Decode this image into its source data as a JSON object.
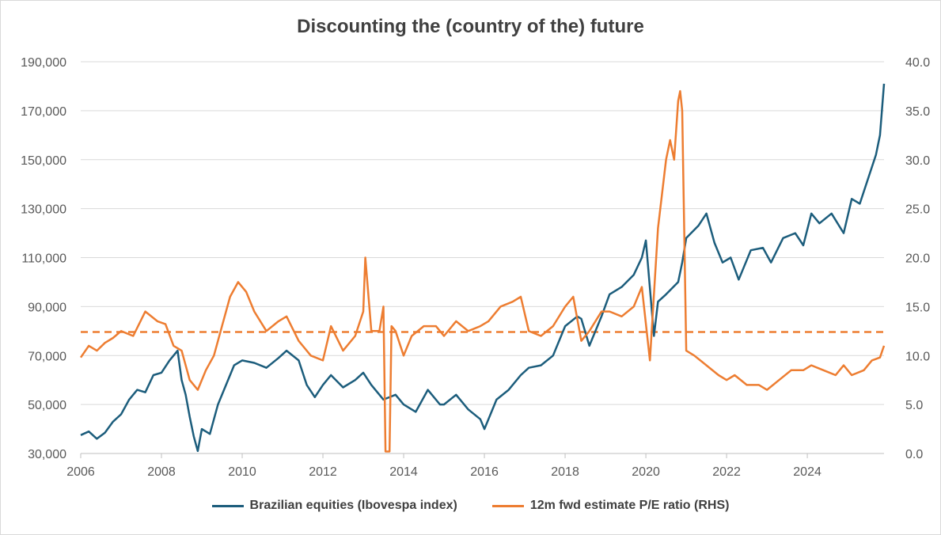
{
  "chart_data": {
    "type": "line",
    "title": "Discounting the (country of the) future",
    "x_ticks": [
      "2006",
      "2008",
      "2010",
      "2012",
      "2014",
      "2016",
      "2018",
      "2020",
      "2022",
      "2024"
    ],
    "xlim": [
      2006,
      2025.9
    ],
    "y_left": {
      "ticks": [
        "30,000",
        "50,000",
        "70,000",
        "90,000",
        "110,000",
        "130,000",
        "150,000",
        "170,000",
        "190,000"
      ],
      "ylim": [
        30000,
        190000
      ]
    },
    "y_right": {
      "ticks": [
        "0.0",
        "5.0",
        "10.0",
        "15.0",
        "20.0",
        "25.0",
        "30.0",
        "35.0",
        "40.0"
      ],
      "ylim": [
        0,
        40
      ]
    },
    "reference_line": {
      "axis": "right",
      "value": 12.4,
      "style": "dashed"
    },
    "series": [
      {
        "name": "Brazilian equities (Ibovespa index)",
        "axis": "left",
        "color": "#1c5d7c",
        "x": [
          2006,
          2006.2,
          2006.4,
          2006.6,
          2006.8,
          2007,
          2007.2,
          2007.4,
          2007.6,
          2007.8,
          2008,
          2008.2,
          2008.4,
          2008.5,
          2008.6,
          2008.7,
          2008.8,
          2008.9,
          2009,
          2009.2,
          2009.4,
          2009.6,
          2009.8,
          2010,
          2010.3,
          2010.6,
          2010.9,
          2011.1,
          2011.4,
          2011.6,
          2011.8,
          2012,
          2012.2,
          2012.5,
          2012.8,
          2013,
          2013.2,
          2013.5,
          2013.8,
          2014,
          2014.3,
          2014.6,
          2014.9,
          2015,
          2015.3,
          2015.6,
          2015.9,
          2016,
          2016.3,
          2016.6,
          2016.9,
          2017.1,
          2017.4,
          2017.7,
          2018,
          2018.3,
          2018.4,
          2018.6,
          2018.9,
          2019.1,
          2019.4,
          2019.7,
          2019.9,
          2020.0,
          2020.2,
          2020.3,
          2020.5,
          2020.8,
          2020.9,
          2021,
          2021.3,
          2021.5,
          2021.7,
          2021.9,
          2022.1,
          2022.3,
          2022.6,
          2022.9,
          2023.1,
          2023.4,
          2023.7,
          2023.9,
          2024.1,
          2024.3,
          2024.6,
          2024.9,
          2025.1,
          2025.3,
          2025.5,
          2025.7,
          2025.8,
          2025.9
        ],
        "values": [
          37500,
          39000,
          36000,
          38500,
          43000,
          46000,
          52000,
          56000,
          55000,
          62000,
          63000,
          68000,
          72000,
          60000,
          54000,
          45000,
          37000,
          31000,
          40000,
          38000,
          50000,
          58000,
          66000,
          68000,
          67000,
          65000,
          69000,
          72000,
          68000,
          58000,
          53000,
          58000,
          62000,
          57000,
          60000,
          63000,
          58000,
          52000,
          54000,
          50000,
          47000,
          56000,
          50000,
          50000,
          54000,
          48000,
          44000,
          40000,
          52000,
          56000,
          62000,
          65000,
          66000,
          70000,
          82000,
          86000,
          85000,
          74000,
          86000,
          95000,
          98000,
          103000,
          110000,
          117000,
          78000,
          92000,
          95000,
          100000,
          108000,
          118000,
          123000,
          128000,
          116000,
          108000,
          110000,
          101000,
          113000,
          114000,
          108000,
          118000,
          120000,
          115000,
          128000,
          124000,
          128000,
          120000,
          134000,
          132000,
          142000,
          152000,
          160000,
          181000
        ]
      },
      {
        "name": "12m fwd estimate P/E ratio (RHS)",
        "axis": "right",
        "color": "#ed7d31",
        "x": [
          2006,
          2006.2,
          2006.4,
          2006.6,
          2006.8,
          2007,
          2007.3,
          2007.6,
          2007.9,
          2008.1,
          2008.3,
          2008.5,
          2008.7,
          2008.9,
          2009.1,
          2009.3,
          2009.5,
          2009.7,
          2009.9,
          2010.1,
          2010.3,
          2010.6,
          2010.9,
          2011.1,
          2011.4,
          2011.7,
          2012,
          2012.2,
          2012.5,
          2012.8,
          2013.0,
          2013.05,
          2013.2,
          2013.4,
          2013.5,
          2013.55,
          2013.65,
          2013.7,
          2013.8,
          2014,
          2014.2,
          2014.5,
          2014.8,
          2015,
          2015.3,
          2015.6,
          2015.9,
          2016.1,
          2016.4,
          2016.7,
          2016.9,
          2017.1,
          2017.4,
          2017.7,
          2018,
          2018.2,
          2018.4,
          2018.6,
          2018.9,
          2019.1,
          2019.4,
          2019.7,
          2019.9,
          2020.1,
          2020.3,
          2020.5,
          2020.6,
          2020.7,
          2020.8,
          2020.85,
          2020.9,
          2021,
          2021.2,
          2021.5,
          2021.8,
          2022,
          2022.2,
          2022.5,
          2022.8,
          2023,
          2023.3,
          2023.6,
          2023.9,
          2024.1,
          2024.4,
          2024.7,
          2024.9,
          2025.1,
          2025.4,
          2025.6,
          2025.8,
          2025.9
        ],
        "values": [
          9.8,
          11,
          10.5,
          11.3,
          11.8,
          12.5,
          12,
          14.5,
          13.5,
          13.2,
          11,
          10.5,
          7.5,
          6.5,
          8.5,
          10,
          13,
          16,
          17.5,
          16.5,
          14.5,
          12.5,
          13.5,
          14,
          11.5,
          10,
          9.5,
          13,
          10.5,
          12,
          14.5,
          20,
          12.5,
          12.5,
          15,
          0.2,
          0.2,
          13,
          12.5,
          10,
          12,
          13,
          13,
          12,
          13.5,
          12.5,
          13,
          13.5,
          15,
          15.5,
          16,
          12.5,
          12,
          13,
          15,
          16,
          11.5,
          12.5,
          14.5,
          14.5,
          14,
          15,
          17,
          9.5,
          23,
          30,
          32,
          30,
          36,
          37,
          35,
          10.5,
          10,
          9,
          8,
          7.5,
          8,
          7,
          7,
          6.5,
          7.5,
          8.5,
          8.5,
          9,
          8.5,
          8,
          9,
          8,
          8.5,
          9.5,
          9.8,
          11
        ]
      }
    ]
  }
}
